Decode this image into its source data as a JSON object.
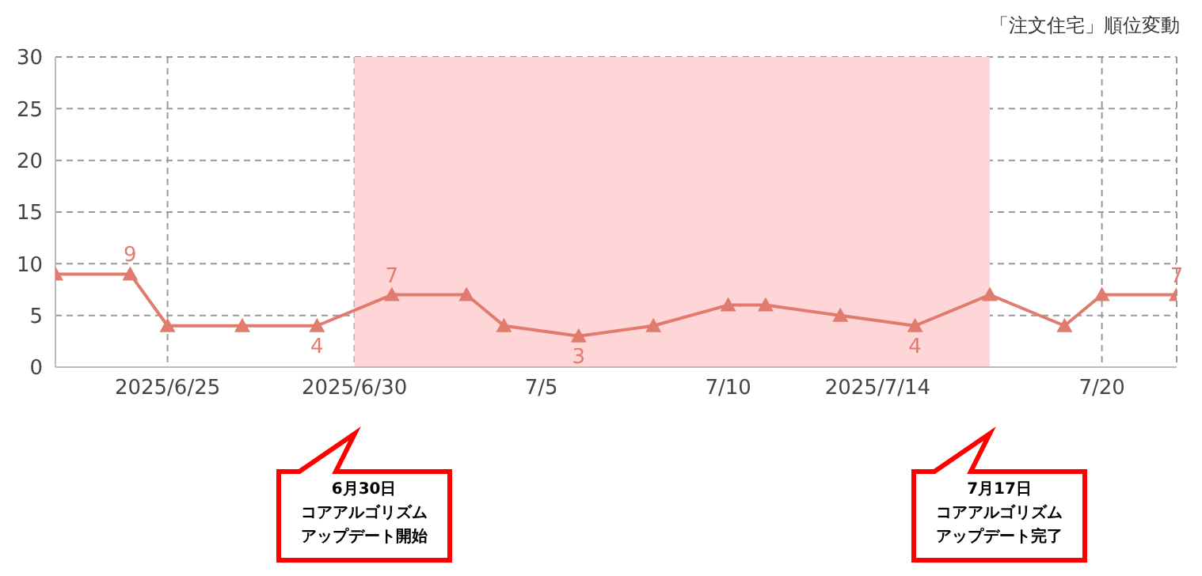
{
  "chart_data": {
    "type": "line",
    "title": "「注文住宅」順位変動",
    "x": [
      "2025-06-22",
      "2025-06-24",
      "2025-06-25",
      "2025-06-27",
      "2025-06-29",
      "2025-07-01",
      "2025-07-03",
      "2025-07-04",
      "2025-07-06",
      "2025-07-08",
      "2025-07-10",
      "2025-07-11",
      "2025-07-13",
      "2025-07-15",
      "2025-07-17",
      "2025-07-19",
      "2025-07-20",
      "2025-07-22"
    ],
    "series": [
      {
        "color": "#e07b6e",
        "values": [
          9,
          9,
          4,
          4,
          4,
          7,
          7,
          4,
          3,
          4,
          6,
          6,
          5,
          4,
          7,
          4,
          7,
          7
        ],
        "value_labels": [
          null,
          "9",
          null,
          null,
          "4",
          "7",
          null,
          null,
          "3",
          null,
          null,
          null,
          null,
          "4",
          null,
          null,
          null,
          "7"
        ]
      }
    ],
    "xlim": [
      "2025-06-22",
      "2025-07-22"
    ],
    "xticks": [
      {
        "value": "2025-06-25",
        "label": "2025/6/25"
      },
      {
        "value": "2025-06-30",
        "label": "2025/6/30"
      },
      {
        "value": "2025-07-05",
        "label": "7/5"
      },
      {
        "value": "2025-07-10",
        "label": "7/10"
      },
      {
        "value": "2025-07-14",
        "label": "2025/7/14"
      },
      {
        "value": "2025-07-20",
        "label": "7/20"
      }
    ],
    "ylim": [
      0,
      30
    ],
    "yticks": [
      0,
      5,
      10,
      15,
      20,
      25,
      30
    ],
    "grid": true,
    "marker": "triangle",
    "line_style": "solid",
    "bands": [
      {
        "axis": "x",
        "from": "2025-06-30",
        "to": "2025-07-17",
        "color": "#ffd6d8"
      }
    ],
    "annotations": [
      "6月30日",
      "コアアルゴリズムアップデート開始",
      "7月17日",
      "コアアルゴリズムアップデート完了"
    ]
  }
}
